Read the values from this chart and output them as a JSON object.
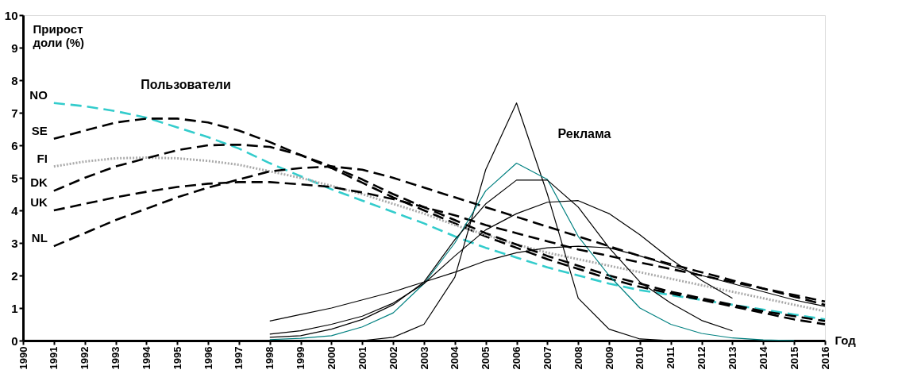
{
  "chart_data": {
    "type": "line",
    "xlabel": "Год",
    "ylabel": "Прирост доли (%)",
    "xlim": [
      1990,
      2016
    ],
    "xticks": [
      1990,
      1991,
      1992,
      1993,
      1994,
      1995,
      1996,
      1997,
      1998,
      1999,
      2000,
      2001,
      2002,
      2003,
      2004,
      2005,
      2006,
      2007,
      2008,
      2009,
      2010,
      2011,
      2012,
      2013,
      2014,
      2015,
      2016
    ],
    "ylim": [
      0,
      10
    ],
    "yticks": [
      0,
      1,
      2,
      3,
      4,
      5,
      6,
      7,
      8,
      9,
      10
    ],
    "grid": false,
    "annotations": [
      "Пользователи",
      "Реклама"
    ],
    "series": [
      {
        "name": "NO",
        "color": "#33cccc",
        "line_style": "dashed",
        "x": [
          1991,
          1992,
          1993,
          1994,
          1995,
          1996,
          1997,
          1998,
          1999,
          2000,
          2001,
          2002,
          2003,
          2004,
          2005,
          2006,
          2007,
          2008,
          2009,
          2010,
          2011,
          2012,
          2013,
          2014,
          2015,
          2016
        ],
        "values": [
          7.3,
          7.2,
          7.05,
          6.85,
          6.55,
          6.25,
          5.9,
          5.45,
          5.05,
          4.65,
          4.3,
          3.95,
          3.6,
          3.2,
          2.85,
          2.55,
          2.25,
          2.0,
          1.75,
          1.55,
          1.4,
          1.25,
          1.1,
          0.95,
          0.8,
          0.65
        ]
      },
      {
        "name": "SE",
        "color": "#000000",
        "line_style": "dashed",
        "x": [
          1991,
          1992,
          1993,
          1994,
          1995,
          1996,
          1997,
          1998,
          1999,
          2000,
          2001,
          2002,
          2003,
          2004,
          2005,
          2006,
          2007,
          2008,
          2009,
          2010,
          2011,
          2012,
          2013,
          2014,
          2015,
          2016
        ],
        "values": [
          6.2,
          6.45,
          6.7,
          6.82,
          6.82,
          6.7,
          6.45,
          6.1,
          5.7,
          5.3,
          4.85,
          4.4,
          4.0,
          3.6,
          3.2,
          2.85,
          2.5,
          2.2,
          1.9,
          1.65,
          1.45,
          1.25,
          1.05,
          0.85,
          0.65,
          0.5
        ]
      },
      {
        "name": "FI",
        "color": "#aaaaaa",
        "line_style": "dotted",
        "x": [
          1991,
          1992,
          1993,
          1994,
          1995,
          1996,
          1997,
          1998,
          1999,
          2000,
          2001,
          2002,
          2003,
          2004,
          2005,
          2006,
          2007,
          2008,
          2009,
          2010,
          2011,
          2012,
          2013,
          2014,
          2015,
          2016
        ],
        "values": [
          5.35,
          5.5,
          5.6,
          5.62,
          5.6,
          5.52,
          5.4,
          5.2,
          5.0,
          4.75,
          4.5,
          4.2,
          3.9,
          3.55,
          3.25,
          2.95,
          2.7,
          2.5,
          2.3,
          2.1,
          1.9,
          1.7,
          1.5,
          1.3,
          1.1,
          0.9
        ]
      },
      {
        "name": "DK",
        "color": "#000000",
        "line_style": "dashed",
        "x": [
          1991,
          1992,
          1993,
          1994,
          1995,
          1996,
          1997,
          1998,
          1999,
          2000,
          2001,
          2002,
          2003,
          2004,
          2005,
          2006,
          2007,
          2008,
          2009,
          2010,
          2011,
          2012,
          2013,
          2014,
          2015,
          2016
        ],
        "values": [
          4.6,
          5.0,
          5.35,
          5.6,
          5.85,
          6.0,
          6.02,
          5.95,
          5.7,
          5.35,
          4.95,
          4.5,
          4.1,
          3.7,
          3.3,
          2.95,
          2.6,
          2.3,
          2.0,
          1.75,
          1.5,
          1.3,
          1.1,
          0.9,
          0.75,
          0.6
        ]
      },
      {
        "name": "UK",
        "color": "#000000",
        "line_style": "dashed",
        "x": [
          1991,
          1992,
          1993,
          1994,
          1995,
          1996,
          1997,
          1998,
          1999,
          2000,
          2001,
          2002,
          2003,
          2004,
          2005,
          2006,
          2007,
          2008,
          2009,
          2010,
          2011,
          2012,
          2013,
          2014,
          2015,
          2016
        ],
        "values": [
          4.0,
          4.2,
          4.4,
          4.57,
          4.72,
          4.82,
          4.87,
          4.87,
          4.8,
          4.72,
          4.55,
          4.35,
          4.1,
          3.85,
          3.55,
          3.3,
          3.05,
          2.8,
          2.6,
          2.4,
          2.2,
          2.0,
          1.8,
          1.6,
          1.4,
          1.2
        ]
      },
      {
        "name": "NL",
        "color": "#000000",
        "line_style": "dashed",
        "x": [
          1991,
          1992,
          1993,
          1994,
          1995,
          1996,
          1997,
          1998,
          1999,
          2000,
          2001,
          2002,
          2003,
          2004,
          2005,
          2006,
          2007,
          2008,
          2009,
          2010,
          2011,
          2012,
          2013,
          2014,
          2015,
          2016
        ],
        "values": [
          2.9,
          3.3,
          3.7,
          4.05,
          4.4,
          4.7,
          4.95,
          5.2,
          5.3,
          5.35,
          5.25,
          5.0,
          4.7,
          4.4,
          4.1,
          3.8,
          3.5,
          3.2,
          2.9,
          2.6,
          2.35,
          2.1,
          1.85,
          1.6,
          1.35,
          1.1
        ]
      },
      {
        "color": "#000000",
        "line_style": "solid",
        "x": [
          1998,
          1999,
          2000,
          2001,
          2002,
          2003,
          2004,
          2005,
          2006,
          2007,
          2008,
          2009,
          2010,
          2011
        ],
        "values": [
          0,
          0,
          0,
          0,
          0.1,
          0.5,
          1.95,
          5.25,
          7.3,
          4.5,
          1.3,
          0.35,
          0.05,
          0
        ]
      },
      {
        "color": "#008080",
        "line_style": "solid",
        "x": [
          1998,
          1999,
          2000,
          2001,
          2002,
          2003,
          2004,
          2005,
          2006,
          2007,
          2008,
          2009,
          2010,
          2011,
          2012,
          2013,
          2014,
          2015
        ],
        "values": [
          0.03,
          0.07,
          0.15,
          0.42,
          0.85,
          1.75,
          3.0,
          4.6,
          5.45,
          4.95,
          3.2,
          2.0,
          1.0,
          0.5,
          0.22,
          0.08,
          0.02,
          0
        ]
      },
      {
        "color": "#000000",
        "line_style": "solid",
        "x": [
          1998,
          1999,
          2000,
          2001,
          2002,
          2003,
          2004,
          2005,
          2006,
          2007,
          2008,
          2009,
          2010,
          2011,
          2012,
          2013
        ],
        "values": [
          0.1,
          0.15,
          0.35,
          0.65,
          1.1,
          1.8,
          3.1,
          4.2,
          4.93,
          4.93,
          4.1,
          2.85,
          1.8,
          1.15,
          0.62,
          0.3
        ]
      },
      {
        "color": "#000000",
        "line_style": "solid",
        "x": [
          1998,
          1999,
          2000,
          2001,
          2002,
          2003,
          2004,
          2005,
          2006,
          2007,
          2008,
          2009,
          2010,
          2011,
          2012,
          2013
        ],
        "values": [
          0.2,
          0.3,
          0.5,
          0.75,
          1.15,
          1.75,
          2.6,
          3.4,
          3.9,
          4.25,
          4.3,
          3.9,
          3.25,
          2.5,
          1.85,
          1.3
        ]
      },
      {
        "color": "#000000",
        "line_style": "solid",
        "x": [
          1998,
          1999,
          2000,
          2001,
          2002,
          2003,
          2004,
          2005,
          2006,
          2007,
          2008,
          2009,
          2010,
          2011,
          2012,
          2013,
          2014,
          2015,
          2016
        ],
        "values": [
          0.6,
          0.8,
          1.0,
          1.25,
          1.5,
          1.8,
          2.1,
          2.45,
          2.7,
          2.85,
          2.9,
          2.85,
          2.6,
          2.3,
          2.0,
          1.75,
          1.5,
          1.25,
          1.05
        ]
      }
    ]
  }
}
